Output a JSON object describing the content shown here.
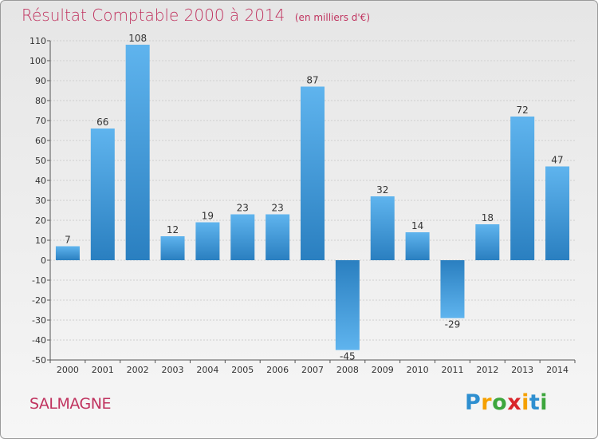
{
  "title": "Résultat Comptable 2000 à 2014",
  "unit_note": "(en milliers d'€)",
  "commune": "SALMAGNE",
  "brand": {
    "letters": [
      "P",
      "r",
      "o",
      "x",
      "i",
      "t",
      "i"
    ],
    "colors": [
      "#2e8fd0",
      "#f5a000",
      "#3da63d",
      "#d9262b",
      "#f5a000",
      "#2e8fd0",
      "#3da63d"
    ]
  },
  "colors": {
    "title": "#c0335f",
    "bar_top": "#5fb4ee",
    "bar_bottom": "#2a7fc0"
  },
  "chart_data": {
    "type": "bar",
    "title": "Résultat Comptable 2000 à 2014",
    "categories": [
      "2000",
      "2001",
      "2002",
      "2003",
      "2004",
      "2005",
      "2006",
      "2007",
      "2008",
      "2009",
      "2010",
      "2011",
      "2012",
      "2013",
      "2014"
    ],
    "values": [
      7,
      66,
      108,
      12,
      19,
      23,
      23,
      87,
      -45,
      32,
      14,
      -29,
      18,
      72,
      47
    ],
    "data_labels": [
      "7",
      "66",
      "108",
      "12",
      "19",
      "23",
      "23",
      "87",
      "-45",
      "32",
      "14",
      "-29",
      "18",
      "72",
      "47"
    ],
    "ylim": [
      -50,
      110
    ],
    "yticks": [
      110,
      100,
      90,
      80,
      70,
      60,
      50,
      40,
      30,
      20,
      10,
      0,
      -10,
      -20,
      -30,
      -40,
      -50
    ],
    "ytick_labels": [
      "110",
      "100",
      "90",
      "80",
      "70",
      "60",
      "50",
      "40",
      "30",
      "20",
      "10",
      "0",
      "-10",
      "-20",
      "-30",
      "-40",
      "-50"
    ],
    "grid": true,
    "legend": "none"
  }
}
